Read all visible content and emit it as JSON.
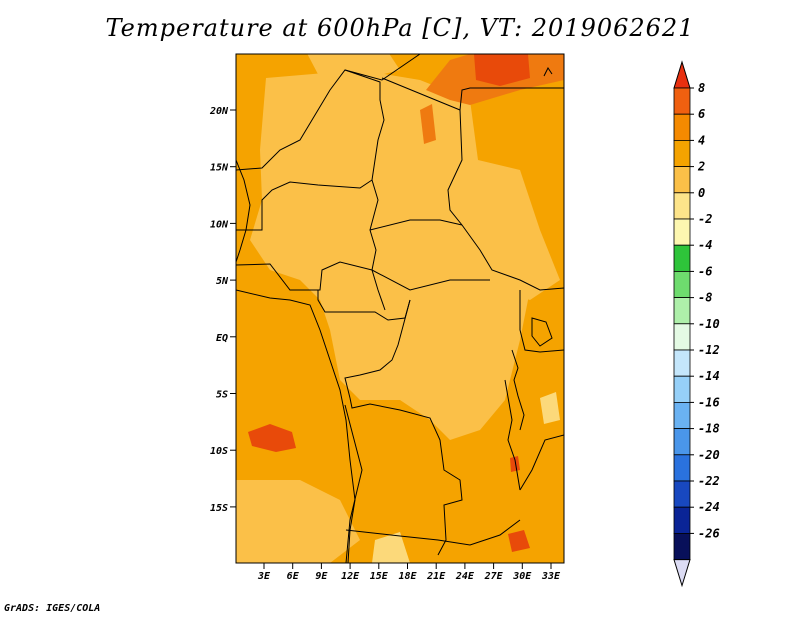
{
  "title": "Temperature at 600hPa [C], VT: 2019062621",
  "credit": "GrADS: IGES/COLA",
  "map": {
    "lat_labels": [
      "20N",
      "15N",
      "10N",
      "5N",
      "EQ",
      "5S",
      "10S",
      "15S"
    ],
    "lon_labels": [
      "3E",
      "6E",
      "9E",
      "12E",
      "15E",
      "18E",
      "21E",
      "24E",
      "27E",
      "30E",
      "33E"
    ],
    "field_colors": {
      "base": "#f5a300",
      "light": "#fbc048",
      "pale": "#fcd97a",
      "warm": "#ef7a10",
      "hot": "#e84a0a"
    },
    "border_color": "#000000"
  },
  "colorbar": {
    "labels": [
      "8",
      "6",
      "4",
      "2",
      "0",
      "-2",
      "-4",
      "-6",
      "-8",
      "-10",
      "-12",
      "-14",
      "-16",
      "-18",
      "-20",
      "-22",
      "-24",
      "-26"
    ],
    "colors": [
      "#e83010",
      "#f06010",
      "#f58a00",
      "#f5a300",
      "#fbc048",
      "#fde48a",
      "#fdf7b0",
      "#2ec43a",
      "#6edc6e",
      "#aef0aa",
      "#e4fae4",
      "#c4e6fb",
      "#96d0f8",
      "#6ab2f2",
      "#4a96ea",
      "#2a72de",
      "#1848c0",
      "#0a2496",
      "#08105a",
      "#dcdcf4"
    ]
  }
}
